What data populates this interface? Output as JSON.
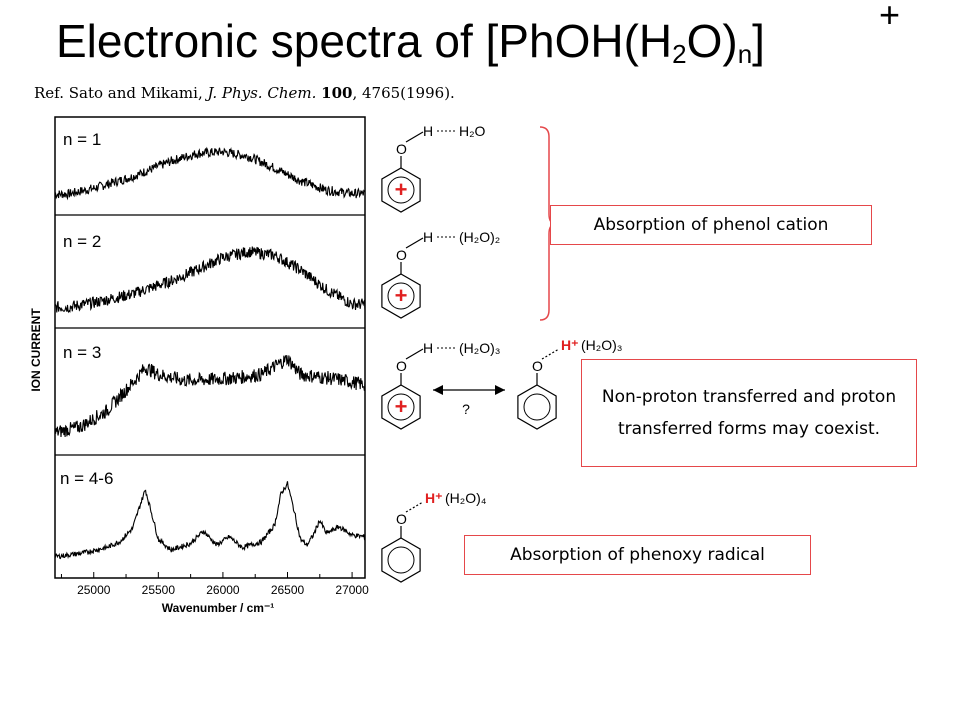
{
  "slide": {
    "title_main": "Electronic spectra of [PhOH(H",
    "title_sub1": "2",
    "title_mid": "O)",
    "title_sub2": "n",
    "title_end": "]",
    "title_sup": "+",
    "ref_prefix": "Ref. Sato and Mikami, ",
    "ref_journal": "J. Phys. Chem.",
    "ref_volume": "100",
    "ref_suffix": ", 4765(1996)."
  },
  "callouts": {
    "phenol_cation": "Absorption of phenol cation",
    "coexist": "Non-proton transferred and proton transferred forms may coexist.",
    "phenoxy_radical": "Absorption of phenoxy radical"
  },
  "structures": {
    "h_label": "H",
    "o_label": "O",
    "water_n1": "H₂O",
    "water_n2": "(H₂O)₂",
    "water_n3": "(H₂O)₃",
    "water_n4": "(H₂O)₄",
    "proton_label": "H⁺",
    "plus_sign": "+",
    "question_mark": "?"
  },
  "colors": {
    "callout_border": "#e5474a",
    "cation_plus": "#e02020",
    "spectrum_line": "#000000"
  },
  "chart_data": {
    "type": "line",
    "title": "",
    "xlabel": "Wavenumber / cm⁻¹",
    "ylabel": "ION CURRENT",
    "xlim": [
      24700,
      27100
    ],
    "x_ticks": [
      25000,
      25500,
      26000,
      26500,
      27000
    ],
    "x_tick_labels": [
      "25000",
      "25500",
      "26000",
      "26500",
      "27000"
    ],
    "grid": false,
    "panels": [
      {
        "label": "n = 1",
        "x": [
          24800,
          25000,
          25300,
          25600,
          25800,
          26000,
          26200,
          26400,
          26600,
          26800,
          27000
        ],
        "y": [
          0.05,
          0.15,
          0.35,
          0.62,
          0.75,
          0.78,
          0.7,
          0.5,
          0.28,
          0.12,
          0.06
        ]
      },
      {
        "label": "n = 2",
        "x": [
          24800,
          25000,
          25300,
          25600,
          25800,
          26000,
          26200,
          26400,
          26600,
          26800,
          27000
        ],
        "y": [
          0.04,
          0.1,
          0.22,
          0.4,
          0.55,
          0.72,
          0.8,
          0.75,
          0.55,
          0.28,
          0.08
        ]
      },
      {
        "label": "n = 3",
        "x": [
          24700,
          24900,
          25100,
          25300,
          25400,
          25500,
          25700,
          25900,
          26100,
          26300,
          26500,
          26600,
          26700,
          26900,
          27100
        ],
        "y": [
          0.05,
          0.12,
          0.3,
          0.62,
          0.8,
          0.72,
          0.65,
          0.66,
          0.68,
          0.72,
          0.9,
          0.72,
          0.7,
          0.66,
          0.6
        ]
      },
      {
        "label": "n = 4-6",
        "x": [
          24700,
          24900,
          25100,
          25200,
          25300,
          25350,
          25400,
          25450,
          25500,
          25600,
          25750,
          25850,
          25950,
          26050,
          26150,
          26300,
          26400,
          26450,
          26500,
          26550,
          26600,
          26650,
          26700,
          26750,
          26800,
          26900,
          27000,
          27100
        ],
        "y": [
          0.04,
          0.08,
          0.15,
          0.22,
          0.38,
          0.62,
          0.85,
          0.55,
          0.25,
          0.12,
          0.2,
          0.35,
          0.18,
          0.28,
          0.15,
          0.22,
          0.42,
          0.8,
          0.92,
          0.6,
          0.25,
          0.18,
          0.3,
          0.48,
          0.32,
          0.4,
          0.3,
          0.28
        ]
      }
    ]
  }
}
